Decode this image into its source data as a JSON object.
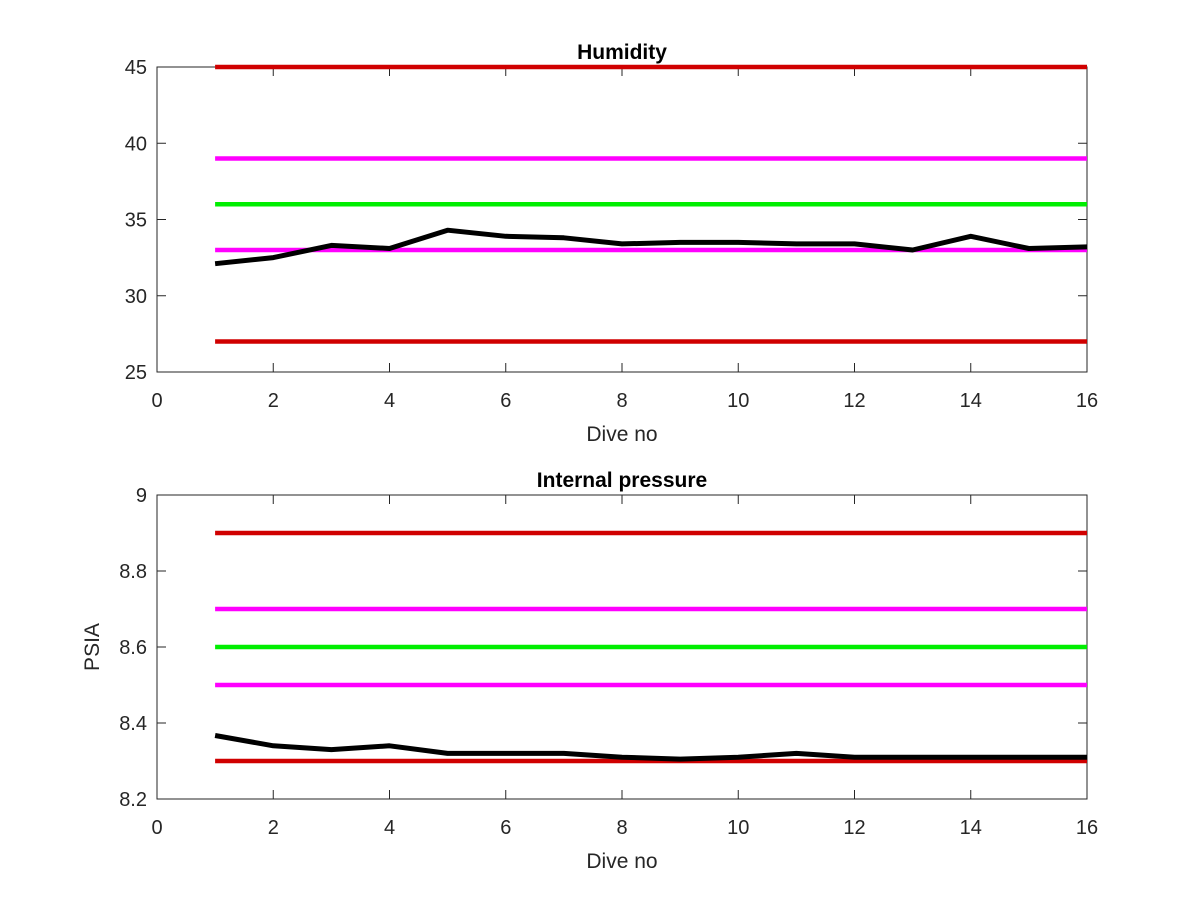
{
  "chart_data": [
    {
      "type": "line",
      "title": "Humidity",
      "xlabel": "Dive no",
      "ylabel": "",
      "xlim": [
        0,
        16
      ],
      "ylim": [
        25,
        45
      ],
      "xticks": [
        0,
        2,
        4,
        6,
        8,
        10,
        12,
        14,
        16
      ],
      "yticks": [
        25,
        30,
        35,
        40,
        45
      ],
      "grid": false,
      "legend": "none",
      "series": [
        {
          "color": "#d00000",
          "x": [
            1,
            16
          ],
          "y": [
            45,
            45
          ]
        },
        {
          "color": "#ff00ff",
          "x": [
            1,
            16
          ],
          "y": [
            39,
            39
          ]
        },
        {
          "color": "#00ee00",
          "x": [
            1,
            16
          ],
          "y": [
            36,
            36
          ]
        },
        {
          "color": "#ff00ff",
          "x": [
            1,
            16
          ],
          "y": [
            33,
            33
          ]
        },
        {
          "color": "#d00000",
          "x": [
            1,
            16
          ],
          "y": [
            27,
            27
          ]
        },
        {
          "color": "#000000",
          "x": [
            1,
            2,
            3,
            4,
            5,
            6,
            7,
            8,
            9,
            10,
            11,
            12,
            13,
            14,
            15,
            16
          ],
          "y": [
            32.1,
            32.5,
            33.3,
            33.1,
            34.3,
            33.9,
            33.8,
            33.4,
            33.5,
            33.5,
            33.4,
            33.4,
            33.0,
            33.9,
            33.1,
            33.2
          ]
        }
      ]
    },
    {
      "type": "line",
      "title": "Internal pressure",
      "xlabel": "Dive no",
      "ylabel": "PSIA",
      "xlim": [
        0,
        16
      ],
      "ylim": [
        8.2,
        9
      ],
      "xticks": [
        0,
        2,
        4,
        6,
        8,
        10,
        12,
        14,
        16
      ],
      "yticks": [
        8.2,
        8.4,
        8.6,
        8.8,
        9
      ],
      "ytick_labels": [
        "8.2",
        "8.4",
        "8.6",
        "8.8",
        "9"
      ],
      "grid": false,
      "legend": "none",
      "series": [
        {
          "color": "#d00000",
          "x": [
            1,
            16
          ],
          "y": [
            8.9,
            8.9
          ]
        },
        {
          "color": "#ff00ff",
          "x": [
            1,
            16
          ],
          "y": [
            8.7,
            8.7
          ]
        },
        {
          "color": "#00ee00",
          "x": [
            1,
            16
          ],
          "y": [
            8.6,
            8.6
          ]
        },
        {
          "color": "#ff00ff",
          "x": [
            1,
            16
          ],
          "y": [
            8.5,
            8.5
          ]
        },
        {
          "color": "#d00000",
          "x": [
            1,
            16
          ],
          "y": [
            8.3,
            8.3
          ]
        },
        {
          "color": "#000000",
          "x": [
            1,
            2,
            3,
            4,
            5,
            6,
            7,
            8,
            9,
            10,
            11,
            12,
            13,
            14,
            15,
            16
          ],
          "y": [
            8.367,
            8.34,
            8.33,
            8.34,
            8.32,
            8.32,
            8.32,
            8.31,
            8.305,
            8.31,
            8.32,
            8.31,
            8.31,
            8.31,
            8.31,
            8.31
          ]
        }
      ]
    }
  ]
}
